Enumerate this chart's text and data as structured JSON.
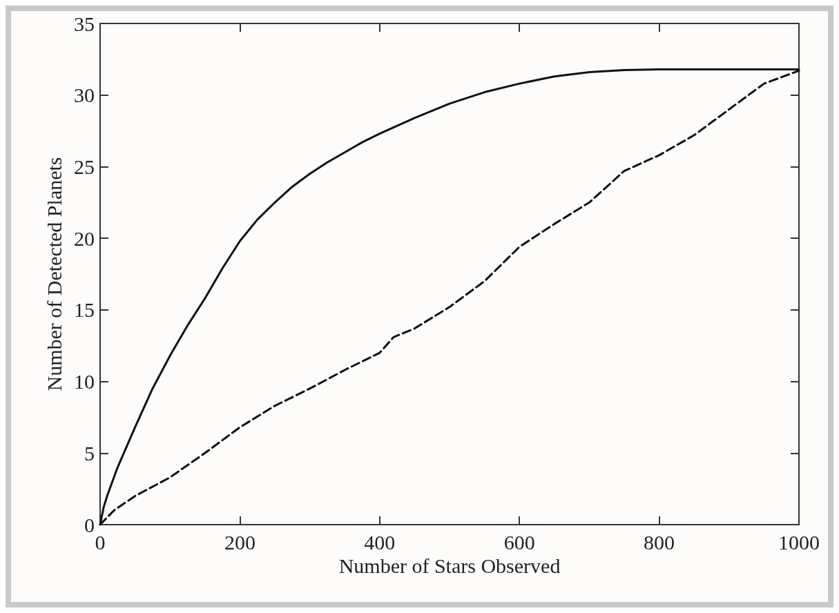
{
  "chart_data": {
    "type": "line",
    "xlabel": "Number of Stars Observed",
    "ylabel": "Number of Detected Planets",
    "xlim": [
      0,
      1000
    ],
    "xticks": [
      0,
      200,
      400,
      600,
      800,
      1000
    ],
    "ylim": [
      0,
      35
    ],
    "yticks": [
      0,
      5,
      10,
      15,
      20,
      25,
      30,
      35
    ],
    "series": [
      {
        "color": "#111111",
        "line_style": "solid",
        "x": [
          0,
          5,
          10,
          25,
          50,
          75,
          100,
          125,
          150,
          175,
          200,
          225,
          250,
          275,
          300,
          325,
          350,
          375,
          400,
          450,
          500,
          550,
          600,
          650,
          700,
          750,
          800,
          900,
          1000
        ],
        "values": [
          0,
          1.2,
          2,
          4,
          6.8,
          9.5,
          11.8,
          13.9,
          15.8,
          17.9,
          19.8,
          21.3,
          22.5,
          23.6,
          24.5,
          25.3,
          26,
          26.7,
          27.3,
          28.4,
          29.4,
          30.2,
          30.8,
          31.3,
          31.6,
          31.75,
          31.8,
          31.8,
          31.8
        ]
      },
      {
        "color": "#111111",
        "line_style": "dashed",
        "x": [
          0,
          20,
          50,
          100,
          150,
          200,
          250,
          300,
          350,
          400,
          420,
          450,
          500,
          550,
          600,
          650,
          700,
          750,
          800,
          850,
          900,
          950,
          1000
        ],
        "values": [
          0,
          1,
          2,
          3.3,
          5,
          6.8,
          8.3,
          9.5,
          10.8,
          12,
          13.1,
          13.7,
          15.2,
          17,
          19.4,
          21,
          22.5,
          24.7,
          25.8,
          27.2,
          29,
          30.8,
          31.7
        ]
      }
    ]
  }
}
